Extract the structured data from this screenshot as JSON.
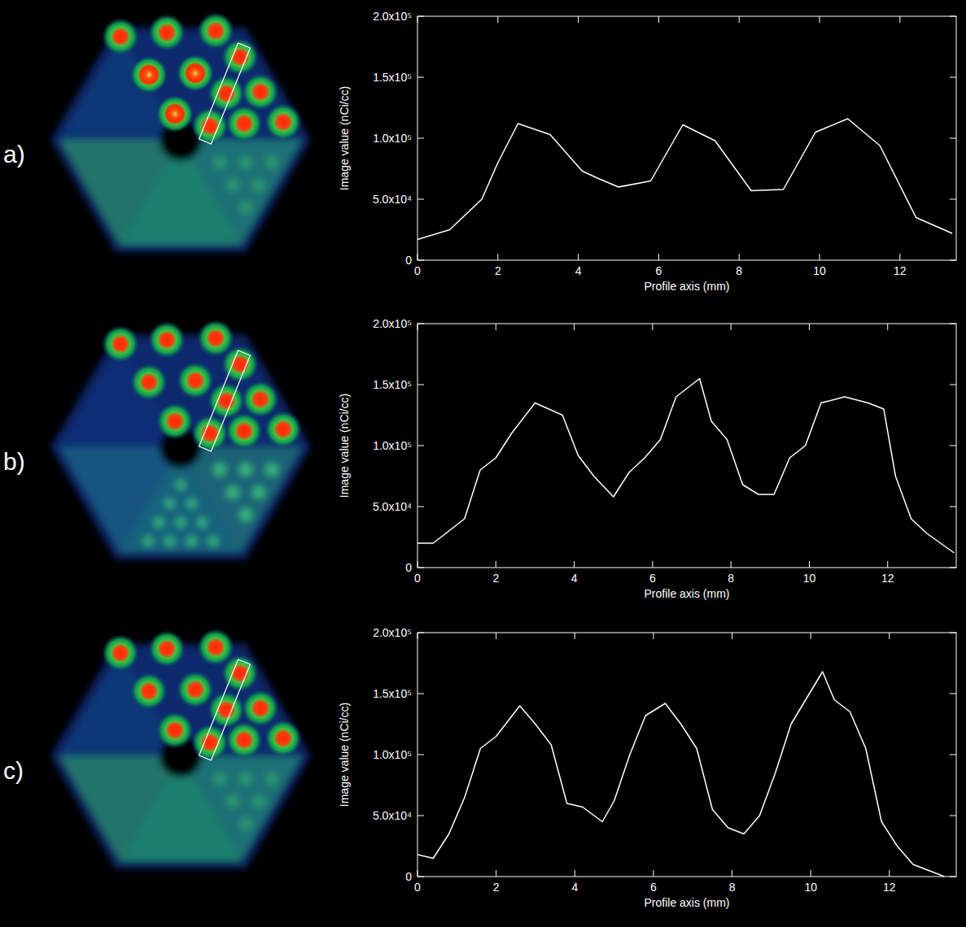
{
  "chart_data": [
    {
      "type": "line",
      "title": "a)",
      "x_label": "Profile axis (mm)",
      "y_label": "Image value (nCi/cc)",
      "color": "#ffffff",
      "xlim": [
        0,
        13.4
      ],
      "xticks": [
        0,
        2,
        4,
        6,
        8,
        10,
        12
      ],
      "ylim": [
        0,
        200000
      ],
      "yticks": [
        0,
        {
          "value": 50000,
          "label": "5.0x10⁴"
        },
        {
          "value": 100000,
          "label": "1.0x10⁵"
        },
        {
          "value": 150000,
          "label": "1.5x10⁵"
        },
        {
          "value": 200000,
          "label": "2.0x10⁵"
        }
      ],
      "x": [
        0,
        0.8,
        1.6,
        2.0,
        2.5,
        3.3,
        4.1,
        4.5,
        5.0,
        5.8,
        6.6,
        7.4,
        8.3,
        9.1,
        9.9,
        10.7,
        11.5,
        12.4,
        13.3
      ],
      "values": [
        17000,
        25000,
        50000,
        80000,
        112000,
        103000,
        73000,
        67000,
        60000,
        65000,
        111000,
        98000,
        57000,
        58000,
        105000,
        116000,
        94000,
        35000,
        22000
      ]
    },
    {
      "type": "line",
      "title": "b)",
      "x_label": "Profile axis (mm)",
      "y_label": "Image value (nCi/cc)",
      "color": "#ffffff",
      "xlim": [
        0,
        13.75
      ],
      "xticks": [
        0,
        2,
        4,
        6,
        8,
        10,
        12
      ],
      "ylim": [
        0,
        200000
      ],
      "yticks": [
        0,
        {
          "value": 50000,
          "label": "5.0x10⁴"
        },
        {
          "value": 100000,
          "label": "1.0x10⁵"
        },
        {
          "value": 150000,
          "label": "1.5x10⁵"
        },
        {
          "value": 200000,
          "label": "2.0x10⁵"
        }
      ],
      "x": [
        0,
        0.4,
        1.2,
        1.6,
        2.0,
        2.4,
        3.0,
        3.7,
        4.1,
        4.5,
        5.0,
        5.4,
        5.8,
        6.2,
        6.6,
        7.2,
        7.5,
        7.9,
        8.3,
        8.7,
        9.1,
        9.5,
        9.9,
        10.3,
        10.9,
        11.5,
        11.9,
        12.2,
        12.6,
        13.0,
        13.7
      ],
      "values": [
        20000,
        20000,
        40000,
        80000,
        90000,
        110000,
        135000,
        125000,
        92000,
        75000,
        58000,
        78000,
        90000,
        105000,
        140000,
        155000,
        120000,
        105000,
        68000,
        60000,
        60000,
        90000,
        100000,
        135000,
        140000,
        135000,
        130000,
        75000,
        40000,
        28000,
        12000
      ]
    },
    {
      "type": "line",
      "title": "c)",
      "x_label": "Profile axis (mm)",
      "y_label": "Image value (nCi/cc)",
      "color": "#ffffff",
      "xlim": [
        0,
        13.7
      ],
      "xticks": [
        0,
        2,
        4,
        6,
        8,
        10,
        12
      ],
      "ylim": [
        0,
        200000
      ],
      "yticks": [
        0,
        {
          "value": 50000,
          "label": "5.0x10⁴"
        },
        {
          "value": 100000,
          "label": "1.0x10⁵"
        },
        {
          "value": 150000,
          "label": "1.5x10⁵"
        },
        {
          "value": 200000,
          "label": "2.0x10⁵"
        }
      ],
      "x": [
        0,
        0.4,
        0.8,
        1.2,
        1.6,
        2.0,
        2.6,
        3.0,
        3.4,
        3.8,
        4.2,
        4.7,
        5.0,
        5.4,
        5.8,
        6.3,
        6.7,
        7.1,
        7.5,
        7.9,
        8.3,
        8.7,
        9.1,
        9.5,
        10.3,
        10.6,
        11.0,
        11.4,
        11.8,
        12.2,
        12.6,
        13.0,
        13.4
      ],
      "values": [
        18000,
        15000,
        35000,
        65000,
        105000,
        115000,
        140000,
        125000,
        108000,
        60000,
        57000,
        45000,
        62000,
        100000,
        132000,
        142000,
        125000,
        105000,
        55000,
        40000,
        35000,
        50000,
        85000,
        125000,
        168000,
        145000,
        135000,
        105000,
        45000,
        25000,
        10000,
        5000,
        0
      ]
    }
  ]
}
